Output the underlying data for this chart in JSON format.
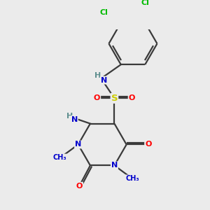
{
  "background_color": "#ebebeb",
  "atom_colors": {
    "C": "#000000",
    "N": "#0000cc",
    "O": "#ff0000",
    "S": "#cccc00",
    "Cl": "#00bb00",
    "H": "#5f8f8f"
  },
  "bond_color": "#3a3a3a",
  "bond_width": 1.6
}
